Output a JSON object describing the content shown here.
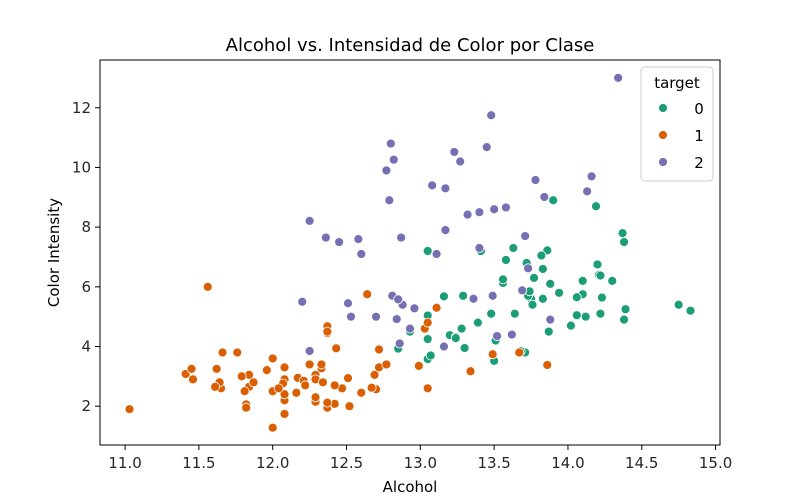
{
  "chart_data": {
    "type": "scatter",
    "title": "Alcohol vs. Intensidad de Color por Clase",
    "xlabel": "Alcohol",
    "ylabel": "Color Intensity",
    "xlim": [
      10.83,
      15.03
    ],
    "ylim": [
      0.7,
      13.6
    ],
    "xticks": [
      "11.0",
      "11.5",
      "12.0",
      "12.5",
      "13.0",
      "13.5",
      "14.0",
      "14.5",
      "15.0"
    ],
    "yticks": [
      "2",
      "4",
      "6",
      "8",
      "10",
      "12"
    ],
    "grid": false,
    "legend": {
      "title": "target",
      "placement": "top-right"
    },
    "series": [
      {
        "name": "0",
        "color": "#1b9e77",
        "points": [
          [
            14.23,
            5.64
          ],
          [
            13.2,
            4.38
          ],
          [
            13.16,
            5.68
          ],
          [
            14.37,
            7.8
          ],
          [
            13.24,
            4.32
          ],
          [
            14.2,
            6.75
          ],
          [
            14.39,
            5.25
          ],
          [
            14.06,
            5.05
          ],
          [
            14.83,
            5.2
          ],
          [
            13.86,
            7.22
          ],
          [
            14.1,
            5.75
          ],
          [
            14.12,
            5.0
          ],
          [
            13.75,
            5.6
          ],
          [
            14.75,
            5.4
          ],
          [
            14.38,
            7.5
          ],
          [
            13.63,
            7.3
          ],
          [
            14.3,
            6.2
          ],
          [
            13.83,
            6.6
          ],
          [
            14.19,
            8.7
          ],
          [
            13.64,
            5.1
          ],
          [
            14.06,
            5.65
          ],
          [
            12.93,
            4.5
          ],
          [
            13.71,
            3.8
          ],
          [
            12.85,
            3.93
          ],
          [
            13.5,
            3.52
          ],
          [
            13.05,
            3.58
          ],
          [
            13.39,
            4.8
          ],
          [
            13.3,
            3.95
          ],
          [
            13.87,
            4.5
          ],
          [
            14.02,
            4.7
          ],
          [
            13.73,
            5.7
          ],
          [
            13.58,
            6.9
          ],
          [
            13.68,
            3.84
          ],
          [
            13.76,
            5.4
          ],
          [
            13.51,
            4.2
          ],
          [
            13.48,
            5.1
          ],
          [
            13.28,
            4.6
          ],
          [
            13.05,
            4.25
          ],
          [
            13.07,
            3.7
          ],
          [
            14.22,
            5.1
          ],
          [
            13.56,
            6.13
          ],
          [
            13.41,
            7.2
          ],
          [
            13.88,
            6.1
          ],
          [
            13.24,
            4.28
          ],
          [
            13.05,
            5.04
          ],
          [
            14.21,
            6.4
          ],
          [
            14.38,
            4.9
          ],
          [
            13.9,
            8.9
          ],
          [
            14.1,
            6.2
          ],
          [
            13.94,
            5.8
          ],
          [
            13.05,
            7.2
          ],
          [
            13.83,
            5.6
          ],
          [
            13.82,
            7.05
          ],
          [
            13.77,
            6.3
          ],
          [
            13.74,
            5.85
          ],
          [
            13.56,
            6.25
          ],
          [
            14.22,
            6.38
          ],
          [
            13.29,
            5.7
          ],
          [
            13.72,
            6.8
          ]
        ]
      },
      {
        "name": "1",
        "color": "#d95f02",
        "points": [
          [
            12.37,
            1.95
          ],
          [
            12.33,
            3.27
          ],
          [
            12.64,
            5.75
          ],
          [
            13.67,
            3.8
          ],
          [
            12.37,
            4.45
          ],
          [
            12.17,
            2.95
          ],
          [
            12.37,
            4.6
          ],
          [
            13.11,
            5.3
          ],
          [
            12.37,
            4.68
          ],
          [
            13.34,
            3.17
          ],
          [
            12.21,
            2.85
          ],
          [
            12.29,
            3.05
          ],
          [
            13.86,
            3.38
          ],
          [
            13.49,
            3.74
          ],
          [
            12.99,
            3.35
          ],
          [
            11.96,
            3.21
          ],
          [
            11.66,
            3.8
          ],
          [
            13.03,
            4.6
          ],
          [
            11.84,
            2.65
          ],
          [
            12.33,
            3.4
          ],
          [
            12.7,
            2.57
          ],
          [
            12.0,
            2.5
          ],
          [
            12.72,
            3.9
          ],
          [
            12.08,
            2.2
          ],
          [
            13.05,
            4.8
          ],
          [
            11.84,
            3.05
          ],
          [
            12.67,
            2.62
          ],
          [
            12.16,
            2.45
          ],
          [
            11.65,
            2.6
          ],
          [
            11.64,
            2.8
          ],
          [
            12.08,
            1.74
          ],
          [
            12.08,
            2.4
          ],
          [
            12.0,
            3.6
          ],
          [
            12.69,
            3.05
          ],
          [
            12.29,
            2.15
          ],
          [
            11.62,
            3.25
          ],
          [
            12.47,
            2.6
          ],
          [
            11.81,
            2.5
          ],
          [
            12.29,
            2.9
          ],
          [
            12.37,
            4.5
          ],
          [
            12.29,
            2.3
          ],
          [
            12.08,
            3.3
          ],
          [
            12.6,
            2.45
          ],
          [
            12.34,
            2.8
          ],
          [
            11.82,
            2.06
          ],
          [
            12.51,
            2.94
          ],
          [
            12.42,
            2.7
          ],
          [
            12.25,
            3.4
          ],
          [
            12.72,
            3.3
          ],
          [
            12.22,
            2.7
          ],
          [
            11.61,
            2.65
          ],
          [
            11.46,
            2.9
          ],
          [
            12.52,
            2.0
          ],
          [
            11.76,
            3.8
          ],
          [
            11.41,
            3.08
          ],
          [
            12.08,
            2.9
          ],
          [
            11.03,
            1.9
          ],
          [
            11.82,
            1.95
          ],
          [
            12.42,
            2.06
          ],
          [
            12.77,
            3.4
          ],
          [
            12.0,
            1.28
          ],
          [
            11.45,
            3.25
          ],
          [
            11.56,
            6.0
          ],
          [
            12.42,
            2.08
          ],
          [
            13.05,
            2.6
          ],
          [
            11.87,
            2.8
          ],
          [
            12.07,
            2.76
          ],
          [
            12.43,
            3.94
          ],
          [
            11.79,
            3.0
          ],
          [
            12.37,
            2.12
          ],
          [
            12.04,
            2.6
          ]
        ]
      },
      {
        "name": "2",
        "color": "#7570b3",
        "points": [
          [
            12.86,
            4.1
          ],
          [
            12.88,
            5.4
          ],
          [
            12.81,
            5.7
          ],
          [
            12.7,
            5.0
          ],
          [
            12.51,
            5.45
          ],
          [
            12.6,
            7.1
          ],
          [
            12.25,
            3.85
          ],
          [
            12.53,
            5.0
          ],
          [
            13.49,
            5.7
          ],
          [
            12.84,
            4.92
          ],
          [
            12.93,
            4.6
          ],
          [
            13.36,
            5.6
          ],
          [
            13.52,
            4.35
          ],
          [
            13.62,
            4.4
          ],
          [
            12.25,
            8.21
          ],
          [
            13.16,
            4.0
          ],
          [
            13.88,
            4.9
          ],
          [
            12.87,
            7.65
          ],
          [
            13.32,
            8.42
          ],
          [
            13.08,
            9.4
          ],
          [
            13.5,
            8.6
          ],
          [
            12.79,
            8.9
          ],
          [
            13.11,
            7.1
          ],
          [
            13.23,
            10.52
          ],
          [
            12.58,
            7.6
          ],
          [
            13.17,
            7.9
          ],
          [
            13.84,
            9.01
          ],
          [
            12.45,
            7.5
          ],
          [
            14.34,
            13.0
          ],
          [
            13.48,
            11.75
          ],
          [
            12.36,
            7.65
          ],
          [
            13.69,
            5.88
          ],
          [
            12.85,
            5.58
          ],
          [
            12.96,
            5.28
          ],
          [
            13.78,
            9.58
          ],
          [
            13.73,
            6.62
          ],
          [
            13.45,
            10.68
          ],
          [
            12.82,
            10.26
          ],
          [
            13.58,
            8.66
          ],
          [
            13.4,
            8.5
          ],
          [
            12.2,
            5.5
          ],
          [
            12.77,
            9.899999
          ],
          [
            14.16,
            9.7
          ],
          [
            13.71,
            7.7
          ],
          [
            13.4,
            7.3
          ],
          [
            13.27,
            10.2
          ],
          [
            13.17,
            9.3
          ],
          [
            14.13,
            9.2
          ],
          [
            12.8,
            10.8
          ]
        ]
      }
    ]
  }
}
